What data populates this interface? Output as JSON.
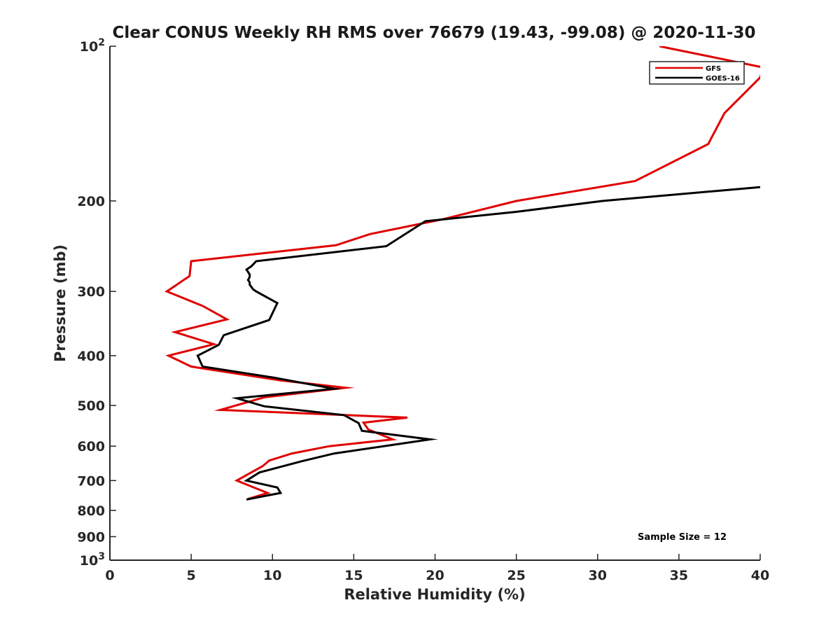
{
  "chart_data": {
    "type": "line",
    "title": "Clear CONUS Weekly RH RMS over 76679 (19.43, -99.08) @ 2020-11-30",
    "xlabel": "Relative Humidity (%)",
    "ylabel": "Pressure (mb)",
    "xlim": [
      0,
      40
    ],
    "ylim": [
      1000,
      100
    ],
    "yscale": "log",
    "y_reversed": true,
    "grid": false,
    "legend_position": "top-right",
    "x_ticks": [
      0,
      5,
      10,
      15,
      20,
      25,
      30,
      35,
      40
    ],
    "x_tick_labels": [
      "0",
      "5",
      "10",
      "15",
      "20",
      "25",
      "30",
      "35",
      "40"
    ],
    "y_ticks": [
      {
        "value": 100,
        "base": "10",
        "exp": "2"
      },
      {
        "value": 200,
        "label": "200"
      },
      {
        "value": 300,
        "label": "300"
      },
      {
        "value": 400,
        "label": "400"
      },
      {
        "value": 500,
        "label": "500"
      },
      {
        "value": 600,
        "label": "600"
      },
      {
        "value": 700,
        "label": "700"
      },
      {
        "value": 800,
        "label": "800"
      },
      {
        "value": 900,
        "label": "900"
      },
      {
        "value": 1000,
        "base": "10",
        "exp": "3"
      }
    ],
    "series": [
      {
        "name": "GFS",
        "color": "#e00000",
        "x": [
          33.8,
          40.2,
          40.0,
          37.8,
          36.8,
          32.3,
          25.0,
          20.5,
          16.0,
          13.9,
          5.0,
          4.9,
          3.5,
          5.7,
          7.2,
          4.0,
          6.4,
          3.6,
          5.0,
          10.5,
          14.5,
          9.5,
          6.8,
          18.3,
          15.6,
          15.9,
          17.4,
          13.5,
          11.2,
          9.8,
          9.4,
          7.8,
          9.0,
          9.7,
          8.5
        ],
        "y": [
          100,
          110,
          115,
          135,
          155,
          183,
          200,
          217,
          232,
          244,
          262,
          280,
          300,
          320,
          340,
          360,
          380,
          400,
          420,
          447,
          462,
          482,
          510,
          528,
          540,
          557,
          582,
          600,
          620,
          640,
          656,
          700,
          725,
          740,
          760
        ]
      },
      {
        "name": "GOES-16",
        "color": "#000000",
        "x": [
          40.0,
          30.3,
          25.0,
          19.4,
          17.0,
          9.0,
          8.7,
          8.4,
          8.6,
          8.6,
          8.5,
          8.6,
          8.6,
          8.7,
          8.8,
          9.0,
          10.3,
          9.8,
          7.0,
          6.7,
          5.4,
          5.7,
          10.0,
          13.8,
          7.8,
          9.5,
          14.4,
          15.3,
          15.5,
          19.7,
          13.8,
          11.8,
          9.2,
          8.4,
          10.3,
          10.5,
          8.4
        ],
        "y": [
          188,
          200,
          210,
          219,
          245,
          262,
          268,
          272,
          278,
          281,
          285,
          288,
          291,
          294,
          297,
          300,
          316,
          341,
          365,
          381,
          400,
          420,
          441,
          464,
          484,
          502,
          522,
          541,
          560,
          582,
          620,
          642,
          675,
          700,
          722,
          740,
          762
        ]
      }
    ],
    "annotations": [
      "Sample Size = 12"
    ]
  }
}
